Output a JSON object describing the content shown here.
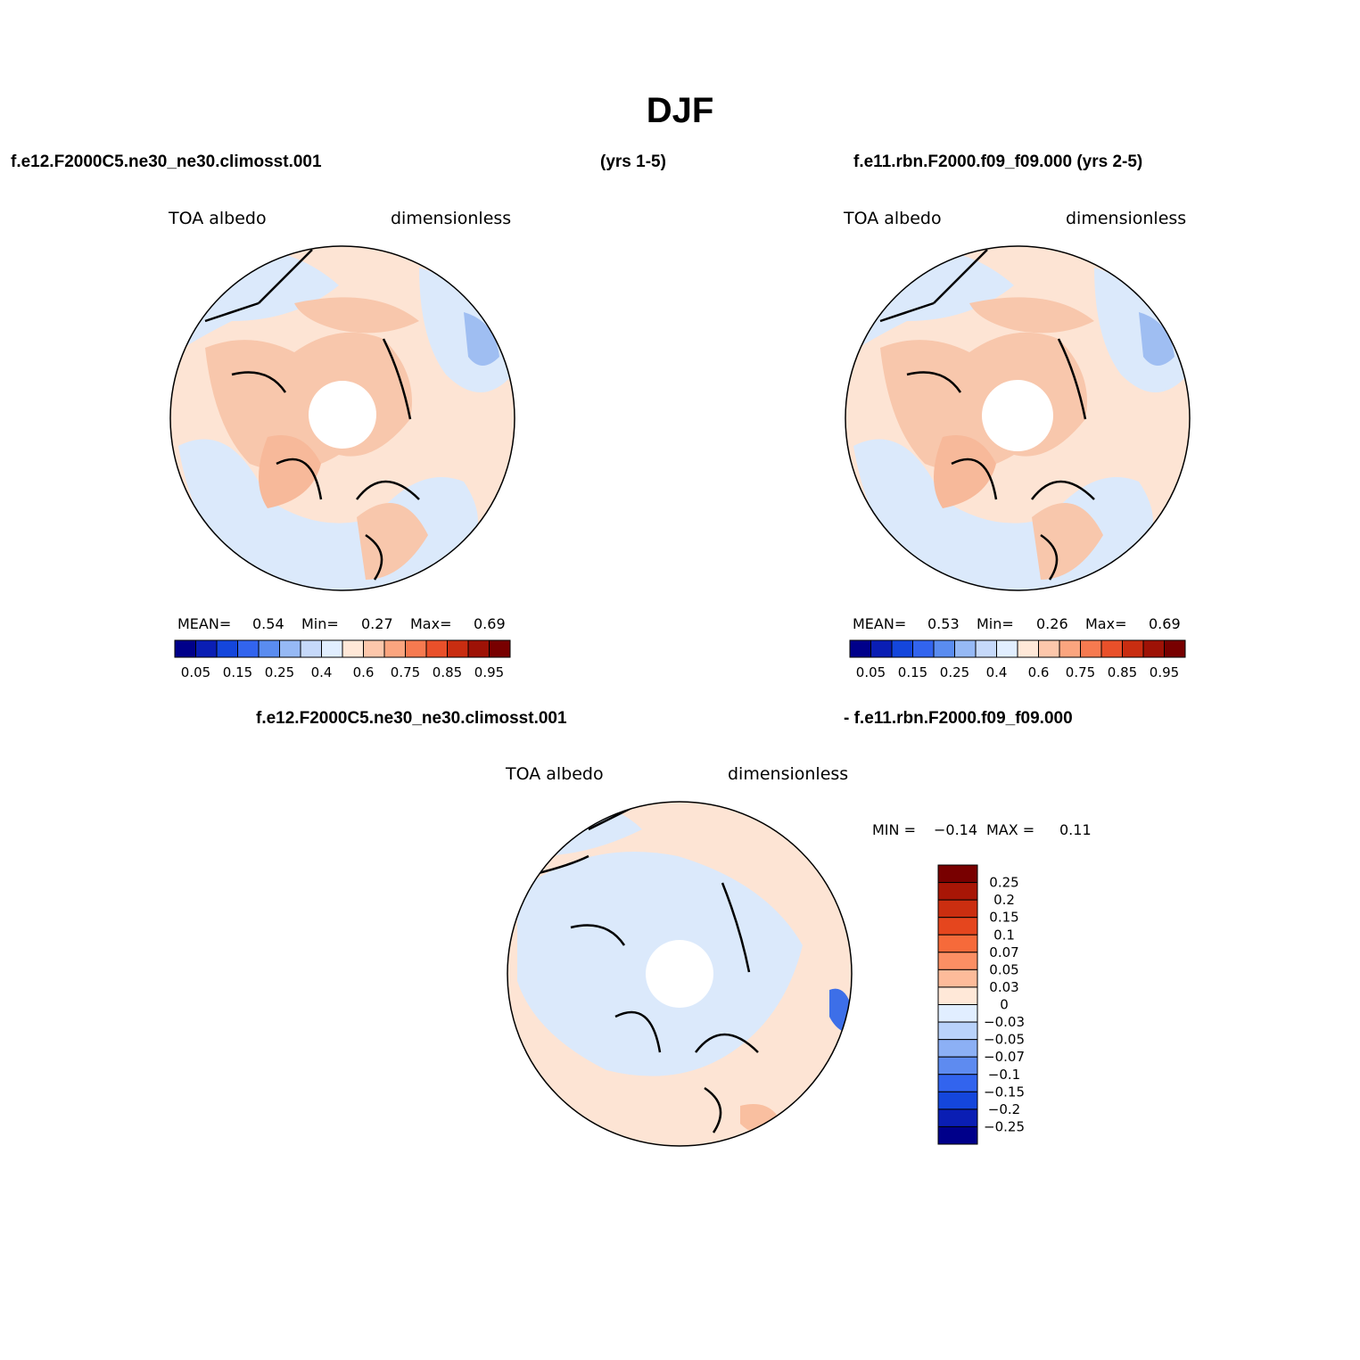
{
  "figure": {
    "title": "DJF",
    "panel1": {
      "header_left": "f.e12.F2000C5.ne30_ne30.climosst.001",
      "header_right": "(yrs 1-5)",
      "variable": "TOA albedo",
      "units": "dimensionless",
      "stats": {
        "mean_label": "MEAN=",
        "mean": "0.54",
        "min_label": "Min=",
        "min": "0.27",
        "max_label": "Max=",
        "max": "0.69"
      }
    },
    "panel2": {
      "header": "f.e11.rbn.F2000.f09_f09.000 (yrs 2-5)",
      "variable": "TOA albedo",
      "units": "dimensionless",
      "stats": {
        "mean_label": "MEAN=",
        "mean": "0.53",
        "min_label": "Min=",
        "min": "0.26",
        "max_label": "Max=",
        "max": "0.69"
      }
    },
    "panel3": {
      "header_left": "f.e12.F2000C5.ne30_ne30.climosst.001",
      "header_right": "- f.e11.rbn.F2000.f09_f09.000",
      "variable": "TOA albedo",
      "units": "dimensionless",
      "stats": {
        "min_label": "MIN =",
        "min": "−0.14",
        "max_label": "MAX =",
        "max": "0.11"
      }
    }
  },
  "chart_data": [
    {
      "type": "heatmap",
      "projection": "north polar stereographic",
      "title": "f.e12.F2000C5.ne30_ne30.climosst.001 (yrs 1-5)",
      "variable": "TOA albedo",
      "units": "dimensionless",
      "mean": 0.54,
      "min": 0.27,
      "max": 0.69,
      "colorbar": {
        "orientation": "horizontal",
        "tick_labels": [
          "0.05",
          "0.15",
          "0.25",
          "0.4",
          "0.6",
          "0.75",
          "0.85",
          "0.95"
        ],
        "colors": [
          "#00008a",
          "#0a1eb4",
          "#1446dc",
          "#3264ee",
          "#5a8cf0",
          "#96b9f5",
          "#c6d9fa",
          "#e1eeff",
          "#ffe8d8",
          "#fdc7ab",
          "#fba57f",
          "#f67a50",
          "#e9502a",
          "#c92d11",
          "#9e1206",
          "#780000"
        ]
      }
    },
    {
      "type": "heatmap",
      "projection": "north polar stereographic",
      "title": "f.e11.rbn.F2000.f09_f09.000 (yrs 2-5)",
      "variable": "TOA albedo",
      "units": "dimensionless",
      "mean": 0.53,
      "min": 0.26,
      "max": 0.69,
      "colorbar": {
        "orientation": "horizontal",
        "tick_labels": [
          "0.05",
          "0.15",
          "0.25",
          "0.4",
          "0.6",
          "0.75",
          "0.85",
          "0.95"
        ],
        "colors": [
          "#00008a",
          "#0a1eb4",
          "#1446dc",
          "#3264ee",
          "#5a8cf0",
          "#96b9f5",
          "#c6d9fa",
          "#e1eeff",
          "#ffe8d8",
          "#fdc7ab",
          "#fba57f",
          "#f67a50",
          "#e9502a",
          "#c92d11",
          "#9e1206",
          "#780000"
        ]
      }
    },
    {
      "type": "heatmap",
      "projection": "north polar stereographic",
      "title": "f.e12.F2000C5.ne30_ne30.climosst.001 - f.e11.rbn.F2000.f09_f09.000",
      "variable": "TOA albedo",
      "units": "dimensionless",
      "min": -0.14,
      "max": 0.11,
      "colorbar": {
        "orientation": "vertical",
        "tick_labels": [
          "0.25",
          "0.2",
          "0.15",
          "0.1",
          "0.07",
          "0.05",
          "0.03",
          "0",
          "−0.03",
          "−0.05",
          "−0.07",
          "−0.1",
          "−0.15",
          "−0.2",
          "−0.25"
        ],
        "colors": [
          "#780000",
          "#a81606",
          "#cb2e10",
          "#e5461e",
          "#f66a3a",
          "#fb8f64",
          "#fdbb9a",
          "#ffe8d8",
          "#e1eeff",
          "#b9d2fa",
          "#8cb0f5",
          "#5e8bf0",
          "#3264ee",
          "#1446dc",
          "#0a1eb4",
          "#00008a"
        ]
      }
    }
  ]
}
